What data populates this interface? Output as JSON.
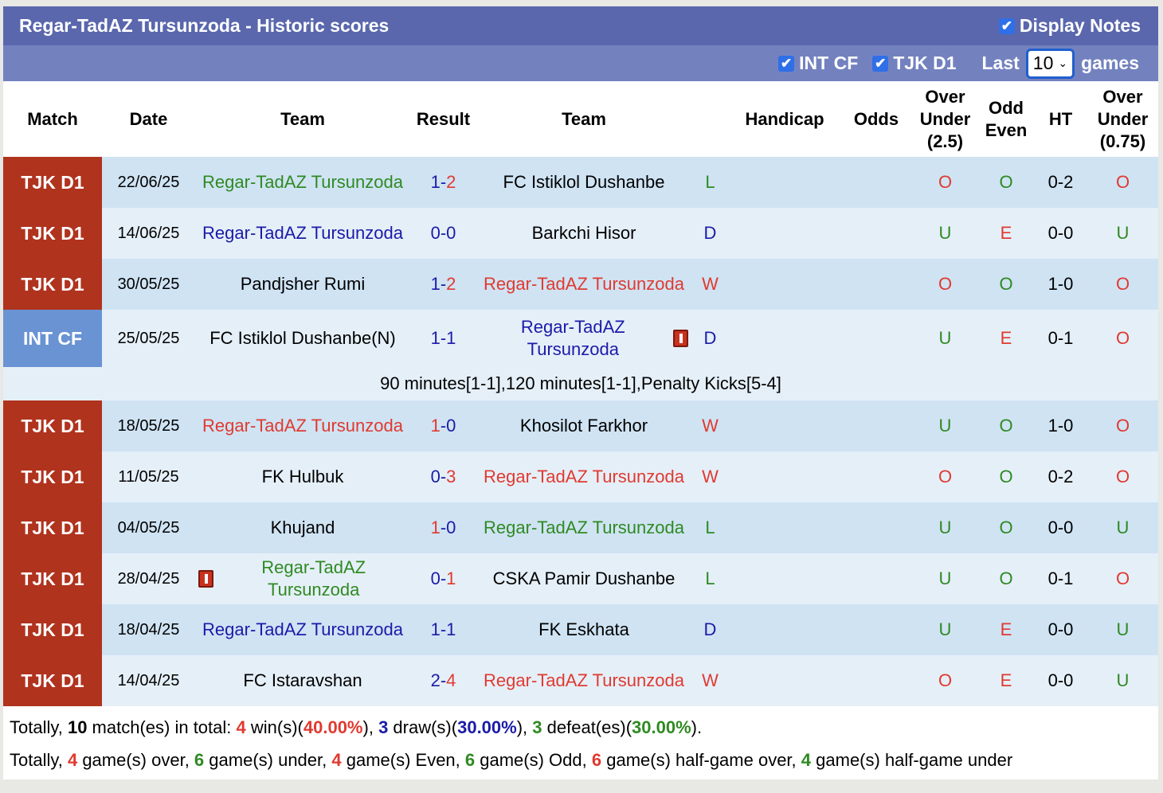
{
  "header": {
    "title": "Regar-TadAZ Tursunzoda - Historic scores",
    "display_notes": "Display Notes"
  },
  "filters": {
    "int_cf": "INT CF",
    "tjk_d1": "TJK D1",
    "last_label": "Last",
    "last_value": "10",
    "games_label": "games"
  },
  "columns": [
    "Match",
    "Date",
    "Team",
    "Result",
    "Team",
    "",
    "Handicap",
    "Odds",
    "Over Under (2.5)",
    "Odd Even",
    "HT",
    "Over Under (0.75)"
  ],
  "colors": {
    "red": "#e03a30",
    "green": "#2f8a22",
    "blue": "#1b1ba8",
    "league_tjk": "#b0331e",
    "league_int": "#6a93d4"
  },
  "rows": [
    {
      "league": "TJK D1",
      "date": "22/06/25",
      "home": "Regar-TadAZ Tursunzoda",
      "away": "FC Istiklol Dushanbe",
      "hs": "1",
      "as": "2",
      "res": "L",
      "focus": "home",
      "ou": "O",
      "oe": "O",
      "ht": "0-2",
      "ou2": "O"
    },
    {
      "league": "TJK D1",
      "date": "14/06/25",
      "home": "Regar-TadAZ Tursunzoda",
      "away": "Barkchi Hisor",
      "hs": "0",
      "as": "0",
      "res": "D",
      "focus": "home",
      "ou": "U",
      "oe": "E",
      "ht": "0-0",
      "ou2": "U"
    },
    {
      "league": "TJK D1",
      "date": "30/05/25",
      "home": "Pandjsher Rumi",
      "away": "Regar-TadAZ Tursunzoda",
      "hs": "1",
      "as": "2",
      "res": "W",
      "focus": "away",
      "ou": "O",
      "oe": "O",
      "ht": "1-0",
      "ou2": "O"
    },
    {
      "league": "INT CF",
      "date": "25/05/25",
      "home": "FC Istiklol Dushanbe(N)",
      "away": "Regar-TadAZ Tursunzoda",
      "hs": "1",
      "as": "1",
      "res": "D",
      "focus": "away",
      "ou": "U",
      "oe": "E",
      "ht": "0-1",
      "ou2": "O",
      "away_card": true,
      "note": "90 minutes[1-1],120 minutes[1-1],Penalty Kicks[5-4]"
    },
    {
      "league": "TJK D1",
      "date": "18/05/25",
      "home": "Regar-TadAZ Tursunzoda",
      "away": "Khosilot Farkhor",
      "hs": "1",
      "as": "0",
      "res": "W",
      "focus": "home",
      "ou": "U",
      "oe": "O",
      "ht": "1-0",
      "ou2": "O"
    },
    {
      "league": "TJK D1",
      "date": "11/05/25",
      "home": "FK Hulbuk",
      "away": "Regar-TadAZ Tursunzoda",
      "hs": "0",
      "as": "3",
      "res": "W",
      "focus": "away",
      "ou": "O",
      "oe": "O",
      "ht": "0-2",
      "ou2": "O"
    },
    {
      "league": "TJK D1",
      "date": "04/05/25",
      "home": "Khujand",
      "away": "Regar-TadAZ Tursunzoda",
      "hs": "1",
      "as": "0",
      "res": "L",
      "focus": "away",
      "ou": "U",
      "oe": "O",
      "ht": "0-0",
      "ou2": "U"
    },
    {
      "league": "TJK D1",
      "date": "28/04/25",
      "home": "Regar-TadAZ Tursunzoda",
      "away": "CSKA Pamir Dushanbe",
      "hs": "0",
      "as": "1",
      "res": "L",
      "focus": "home",
      "ou": "U",
      "oe": "O",
      "ht": "0-1",
      "ou2": "O",
      "home_card": true
    },
    {
      "league": "TJK D1",
      "date": "18/04/25",
      "home": "Regar-TadAZ Tursunzoda",
      "away": "FK Eskhata",
      "hs": "1",
      "as": "1",
      "res": "D",
      "focus": "home",
      "ou": "U",
      "oe": "E",
      "ht": "0-0",
      "ou2": "U"
    },
    {
      "league": "TJK D1",
      "date": "14/04/25",
      "home": "FC Istaravshan",
      "away": "Regar-TadAZ Tursunzoda",
      "hs": "2",
      "as": "4",
      "res": "W",
      "focus": "away",
      "ou": "O",
      "oe": "E",
      "ht": "0-0",
      "ou2": "U"
    }
  ],
  "summary1": {
    "t1": "Totally, ",
    "total": "10",
    "t2": " match(es) in total: ",
    "wins": "4",
    "t3": " win(s)(",
    "win_pct": "40.00%",
    "t4": "), ",
    "draws": "3",
    "t5": " draw(s)(",
    "draw_pct": "30.00%",
    "t6": "), ",
    "defeats": "3",
    "t7": " defeat(es)(",
    "defeat_pct": "30.00%",
    "t8": ")."
  },
  "summary2": {
    "t1": "Totally, ",
    "over": "4",
    "t2": " game(s) over, ",
    "under": "6",
    "t3": " game(s) under, ",
    "even": "4",
    "t4": " game(s) Even, ",
    "odd": "6",
    "t5": " game(s) Odd, ",
    "hg_over": "6",
    "t6": " game(s) half-game over, ",
    "hg_under": "4",
    "t7": " game(s) half-game under"
  }
}
